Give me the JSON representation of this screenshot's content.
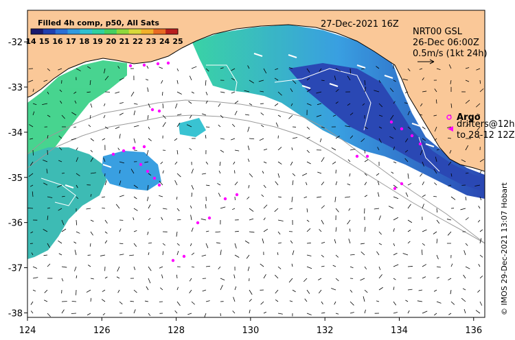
{
  "map": {
    "date_label": "27-Dec-2021 16Z",
    "colorbar": {
      "title": "Filled 4h comp, p50, All Sats",
      "ticks": [
        "14",
        "15",
        "16",
        "17",
        "18",
        "19",
        "20",
        "21",
        "22",
        "23",
        "24",
        "25"
      ],
      "colors": [
        "#1a1a6e",
        "#1f3fb0",
        "#2a6fd6",
        "#2f9ae0",
        "#2fc0d0",
        "#2fd0a0",
        "#45d060",
        "#8ed83c",
        "#d8d83a",
        "#f0b02a",
        "#e86a22",
        "#b81e1e"
      ]
    },
    "gsl": {
      "line1": "NRT00 GSL",
      "line2": "26-Dec 06:00Z",
      "line3": "0.5m/s (1kt 24h)"
    },
    "legend": {
      "argo": "Argo",
      "drifters_line1": "drifters@12h",
      "drifters_line2": "to 28-12 12Z"
    },
    "credit": "© IMOS 29-Dec-2021 13:07 Hobart",
    "x_ticks": [
      "124",
      "126",
      "128",
      "130",
      "132",
      "134",
      "136"
    ],
    "y_ticks": [
      "-32",
      "-33",
      "-34",
      "-35",
      "-36",
      "-37",
      "-38"
    ],
    "x_values": [
      124,
      126,
      128,
      130,
      132,
      134,
      136
    ],
    "y_values": [
      -32,
      -33,
      -34,
      -35,
      -36,
      -37,
      -38
    ],
    "lon_range": [
      124,
      136.3
    ],
    "lat_range": [
      -38.1,
      -31.3
    ],
    "colors": {
      "land": "#fac898",
      "sst_cool": "#2060c8",
      "sst_warm": "#3ad0a0",
      "argo": "#ff00ff"
    }
  }
}
